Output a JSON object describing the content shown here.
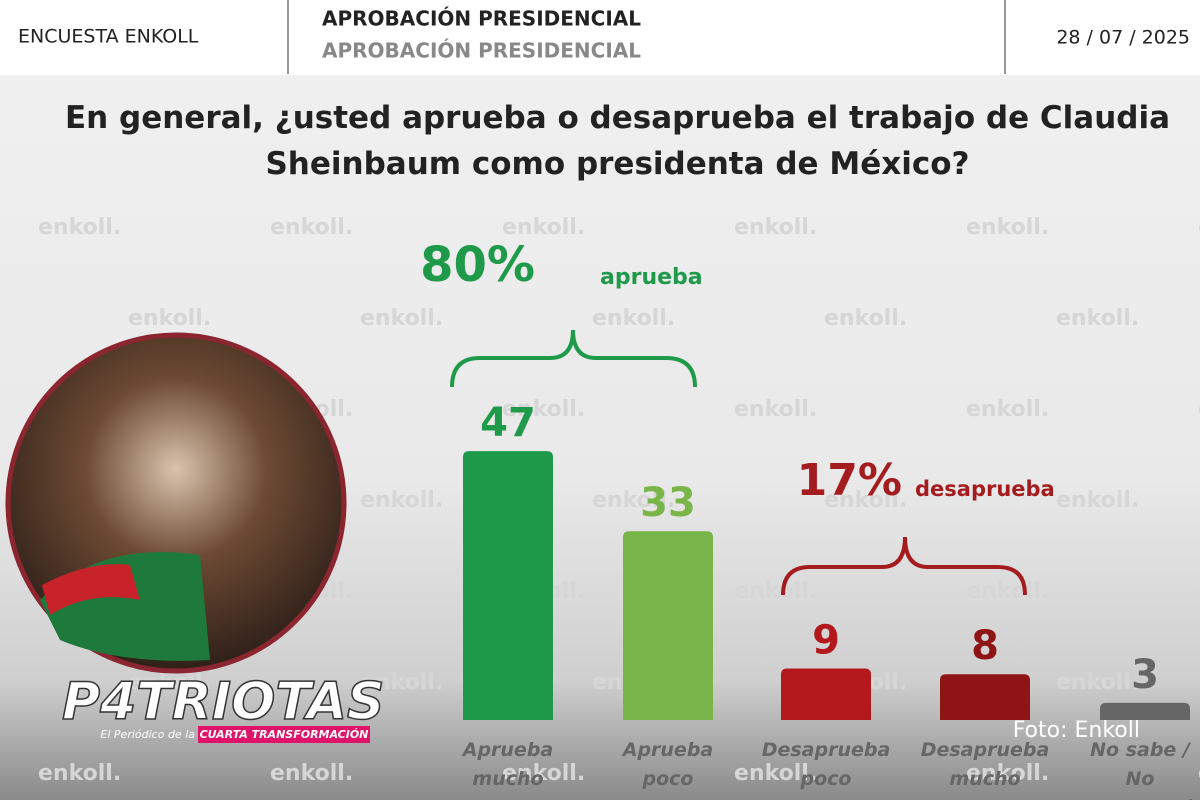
{
  "header": {
    "left": "ENCUESTA ENKOLL",
    "heading": "APROBACIÓN PRESIDENCIAL",
    "subheading": "APROBACIÓN PRESIDENCIAL",
    "date": "28 / 07 / 2025"
  },
  "watermark": "enkoll.",
  "logo": {
    "name": "P4TRIOTAS",
    "tagline": "El Periódico de la",
    "tagline_highlight": "CUARTA TRANSFORMACIÓN"
  },
  "photo_credit": "Foto: Enkoll",
  "chart_data": {
    "type": "bar",
    "title": "En general, ¿usted aprueba o desaprueba el trabajo de Claudia Sheinbaum como presidenta de México?",
    "categories": [
      "Aprueba mucho",
      "Aprueba poco",
      "Desaprueba poco",
      "Desaprueba mucho",
      "No sabe / No respondió"
    ],
    "values": [
      47,
      33,
      9,
      8,
      3
    ],
    "colors": [
      "#1f9a4a",
      "#79b548",
      "#b3191c",
      "#8e1416",
      "#666666"
    ],
    "annotations": [
      {
        "value_text": "80%",
        "text": "aprueba",
        "color": "#1f9a4a"
      },
      {
        "value_text": "17%",
        "text": "desaprueba",
        "color": "#a51c1f"
      }
    ]
  }
}
